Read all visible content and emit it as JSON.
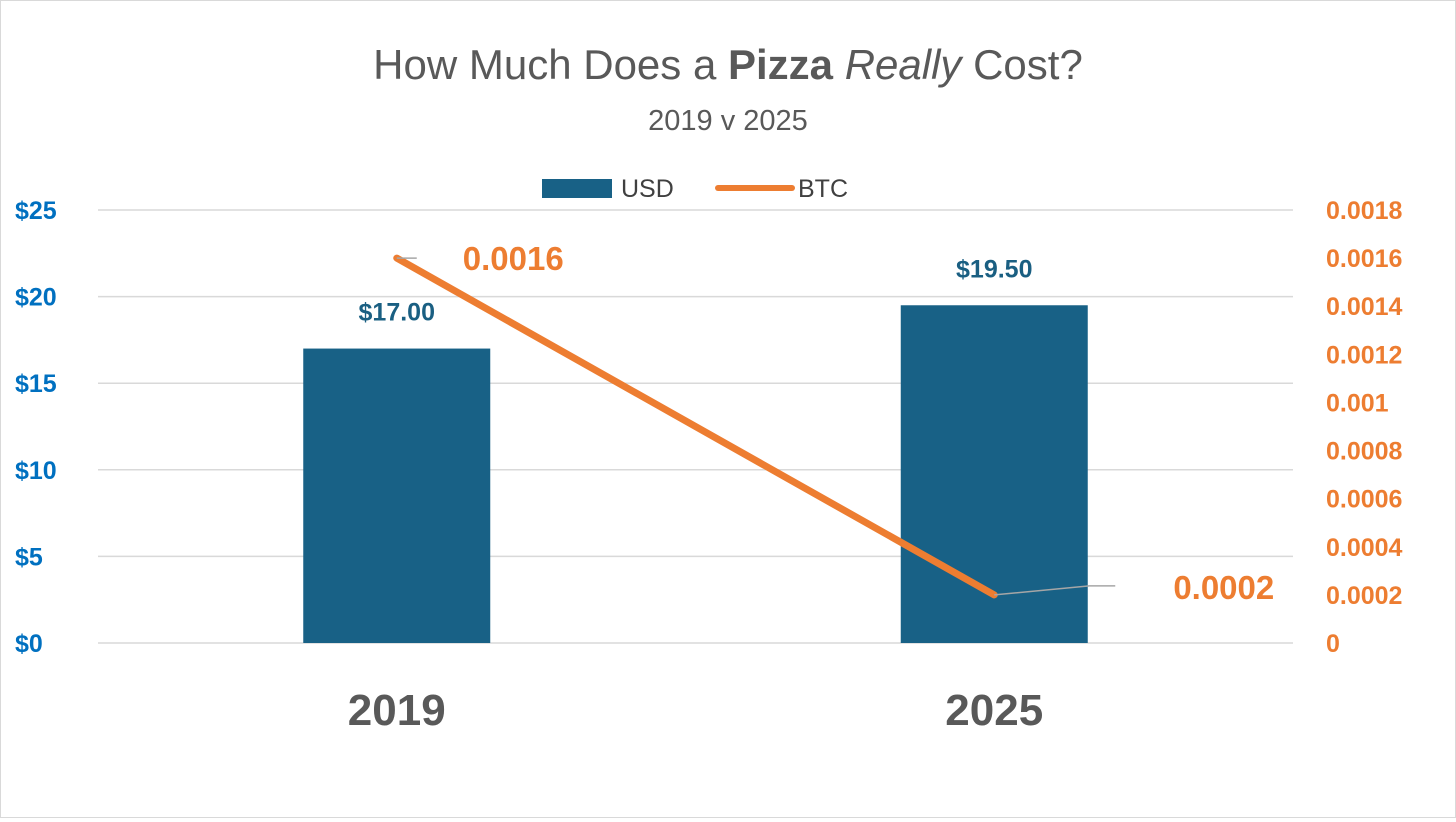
{
  "colors": {
    "usd_bar": "#186186",
    "btc_line": "#ed7d31",
    "left_axis": "#0070c0",
    "right_axis": "#ed7d31",
    "grid": "#d9d9d9",
    "leader": "#a6a6a6"
  },
  "chart_data": {
    "type": "bar",
    "title_parts": {
      "prefix": "How Much Does a ",
      "bold": "Pizza",
      "italic": "Really",
      "suffix": " Cost?"
    },
    "subtitle": "2019 v 2025",
    "categories": [
      "2019",
      "2025"
    ],
    "series": [
      {
        "name": "USD",
        "type": "bar",
        "axis": "left",
        "values": [
          17.0,
          19.5
        ],
        "labels": [
          "$17.00",
          "$19.50"
        ]
      },
      {
        "name": "BTC",
        "type": "line",
        "axis": "right",
        "values": [
          0.0016,
          0.0002
        ],
        "labels": [
          "0.0016",
          "0.0002"
        ]
      }
    ],
    "y_left": {
      "range": [
        0,
        25
      ],
      "ticks": [
        0,
        5,
        10,
        15,
        20,
        25
      ],
      "tick_labels": [
        "$0",
        "$5",
        "$10",
        "$15",
        "$20",
        "$25"
      ]
    },
    "y_right": {
      "range": [
        0,
        0.0018
      ],
      "ticks": [
        0,
        0.0002,
        0.0004,
        0.0006,
        0.0008,
        0.001,
        0.0012,
        0.0014,
        0.0016,
        0.0018
      ],
      "tick_labels": [
        "0",
        "0.0002",
        "0.0004",
        "0.0006",
        "0.0008",
        "0.001",
        "0.0012",
        "0.0014",
        "0.0016",
        "0.0018"
      ]
    },
    "legend_position": "top-center",
    "grid": true
  }
}
